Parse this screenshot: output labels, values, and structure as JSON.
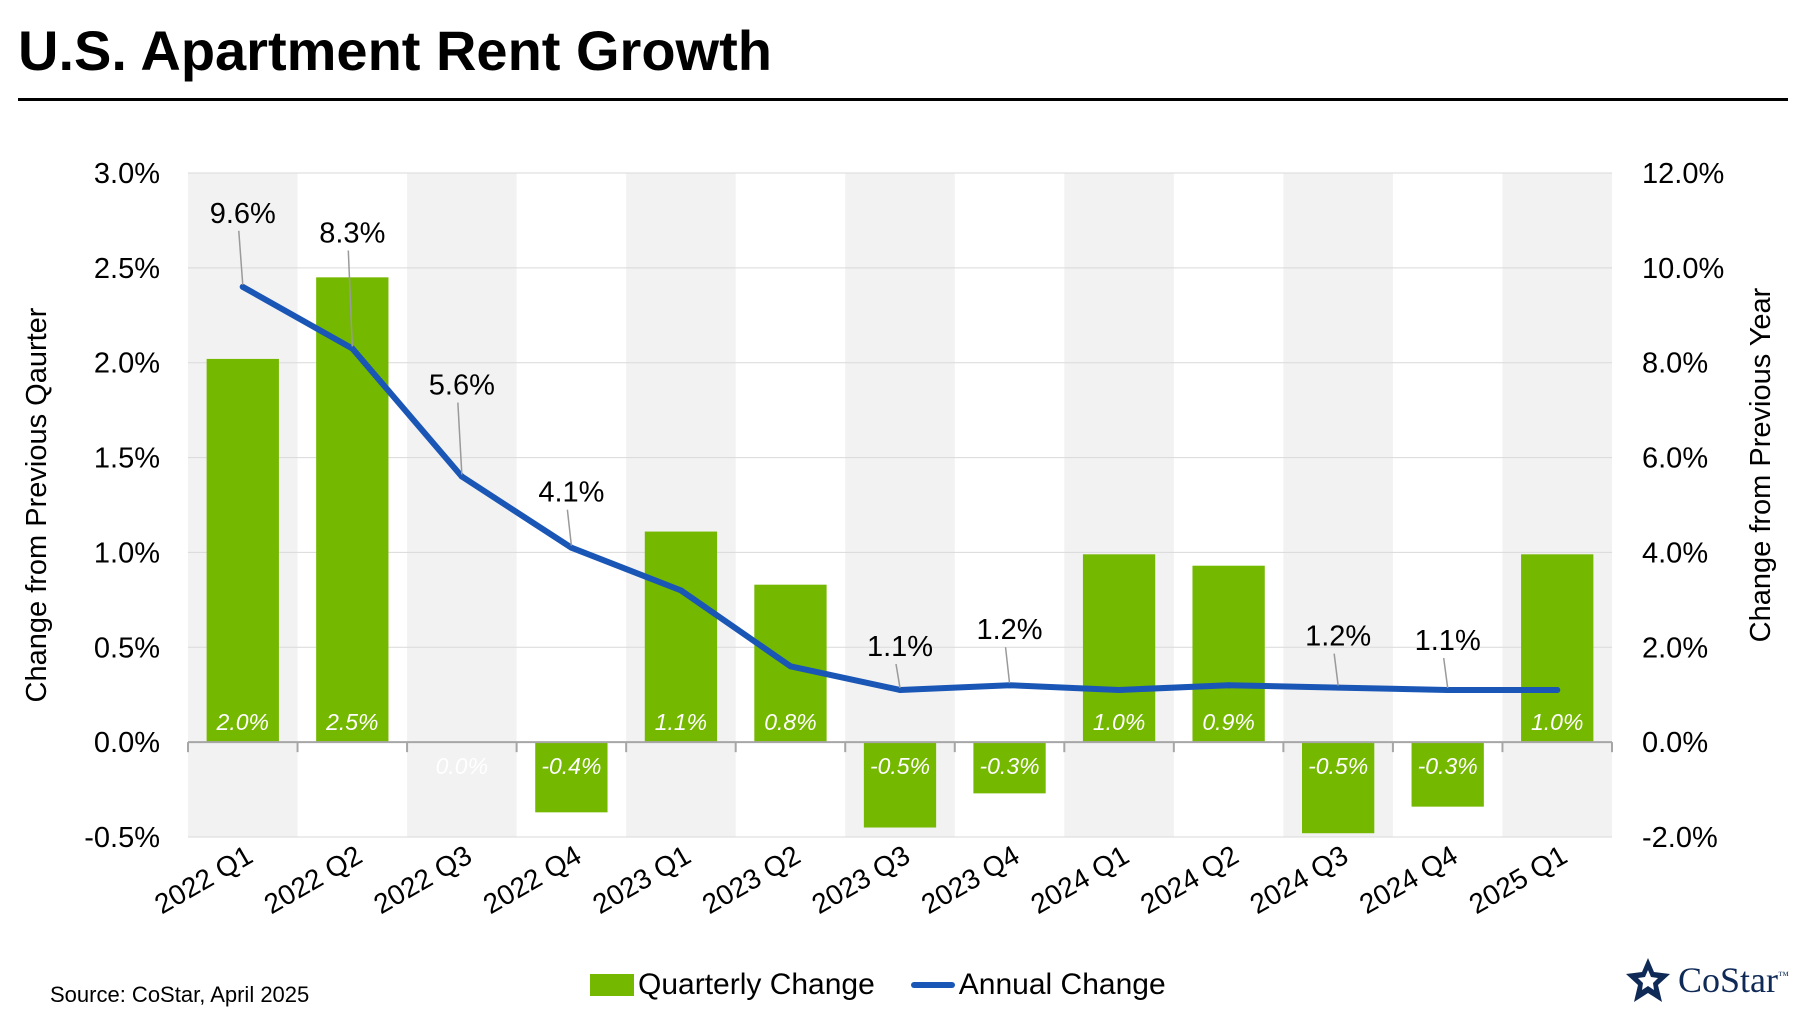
{
  "page": {
    "title": "U.S. Apartment Rent Growth",
    "source": "Source: CoStar, April 2025",
    "logo_text": "CoStar",
    "logo_tm": "™"
  },
  "colors": {
    "bar": "#74b800",
    "line": "#1a56b5",
    "band": "#f2f2f2",
    "grid": "#d9d9d9",
    "axis": "#a6a6a6"
  },
  "chart_data": {
    "type": "bar",
    "title": "U.S. Apartment Rent Growth",
    "categories": [
      "2022 Q1",
      "2022 Q2",
      "2022 Q3",
      "2022 Q4",
      "2023 Q1",
      "2023 Q2",
      "2023 Q3",
      "2023 Q4",
      "2024 Q1",
      "2024 Q2",
      "2024 Q3",
      "2024 Q4",
      "2025 Q1"
    ],
    "series": [
      {
        "name": "Quarterly Change",
        "type": "bar",
        "axis": "left",
        "values": [
          2.02,
          2.45,
          0.0,
          -0.37,
          1.11,
          0.83,
          -0.45,
          -0.27,
          0.99,
          0.93,
          -0.48,
          -0.34,
          0.99
        ],
        "labels": [
          "2.0%",
          "2.5%",
          "0.0%",
          "-0.4%",
          "1.1%",
          "0.8%",
          "-0.5%",
          "-0.3%",
          "1.0%",
          "0.9%",
          "-0.5%",
          "-0.3%",
          "1.0%"
        ]
      },
      {
        "name": "Annual Change",
        "type": "line",
        "axis": "right",
        "values": [
          9.6,
          8.3,
          5.6,
          4.1,
          3.2,
          1.6,
          1.1,
          1.2,
          1.1,
          1.2,
          1.15,
          1.1,
          1.1
        ],
        "labels": [
          "9.6%",
          "8.3%",
          "5.6%",
          "4.1%",
          "",
          "",
          "1.1%",
          "1.2%",
          "",
          "",
          "1.2%",
          "1.1%",
          ""
        ]
      }
    ],
    "ylabel": "Change from Previous Qaurter",
    "y2label": "Change from Previous Year",
    "ylim": [
      -0.5,
      3.0
    ],
    "y2lim": [
      -2.0,
      12.0
    ],
    "yticks": [
      "-0.5%",
      "0.0%",
      "0.5%",
      "1.0%",
      "1.5%",
      "2.0%",
      "2.5%",
      "3.0%"
    ],
    "ytick_values": [
      -0.5,
      0.0,
      0.5,
      1.0,
      1.5,
      2.0,
      2.5,
      3.0
    ],
    "y2ticks": [
      "-2.0%",
      "0.0%",
      "2.0%",
      "4.0%",
      "6.0%",
      "8.0%",
      "10.0%",
      "12.0%"
    ],
    "y2tick_values": [
      -2.0,
      0.0,
      2.0,
      4.0,
      6.0,
      8.0,
      10.0,
      12.0
    ],
    "legend": [
      "Quarterly Change",
      "Annual Change"
    ],
    "legend_position": "bottom"
  }
}
